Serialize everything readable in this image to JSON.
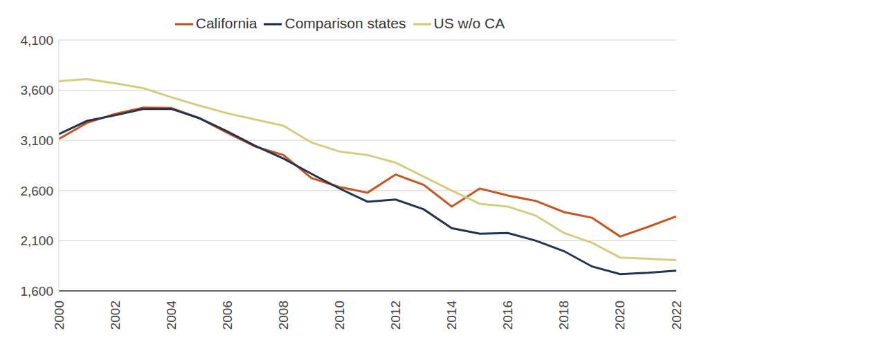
{
  "chart_data": {
    "type": "line",
    "x": [
      2000,
      2001,
      2002,
      2003,
      2004,
      2005,
      2006,
      2007,
      2008,
      2009,
      2010,
      2011,
      2012,
      2013,
      2014,
      2015,
      2016,
      2017,
      2018,
      2019,
      2020,
      2021,
      2022
    ],
    "series": [
      {
        "name": "California",
        "color": "#c8541f",
        "values": [
          3114,
          3274,
          3364,
          3426,
          3424,
          3322,
          3176,
          3038,
          2954,
          2725,
          2635,
          2579,
          2760,
          2656,
          2440,
          2621,
          2551,
          2496,
          2385,
          2329,
          2142,
          2239,
          2343
        ]
      },
      {
        "name": "Comparison states",
        "color": "#243450",
        "values": [
          3163,
          3294,
          3350,
          3413,
          3415,
          3322,
          3190,
          3045,
          2920,
          2767,
          2621,
          2489,
          2510,
          2413,
          2225,
          2170,
          2177,
          2100,
          1996,
          1843,
          1767,
          1781,
          1802
        ]
      },
      {
        "name": "US w/o CA",
        "color": "#d2cd80",
        "values": [
          3690,
          3711,
          3669,
          3621,
          3531,
          3447,
          3371,
          3308,
          3246,
          3079,
          2989,
          2954,
          2878,
          2739,
          2600,
          2468,
          2440,
          2350,
          2177,
          2079,
          1933,
          1920,
          1906
        ]
      }
    ],
    "xlim": [
      2000,
      2022
    ],
    "xticks": [
      2000,
      2002,
      2004,
      2006,
      2008,
      2010,
      2012,
      2014,
      2016,
      2018,
      2020,
      2022
    ],
    "ylim": [
      1600,
      4100
    ],
    "yticks": [
      {
        "value": 1600,
        "label": "1,600"
      },
      {
        "value": 2100,
        "label": "2,100"
      },
      {
        "value": 2600,
        "label": "2,600"
      },
      {
        "value": 3100,
        "label": "3,100"
      },
      {
        "value": 3600,
        "label": "3,600"
      },
      {
        "value": 4100,
        "label": "4,100"
      }
    ],
    "grid": true,
    "legend": "top"
  }
}
